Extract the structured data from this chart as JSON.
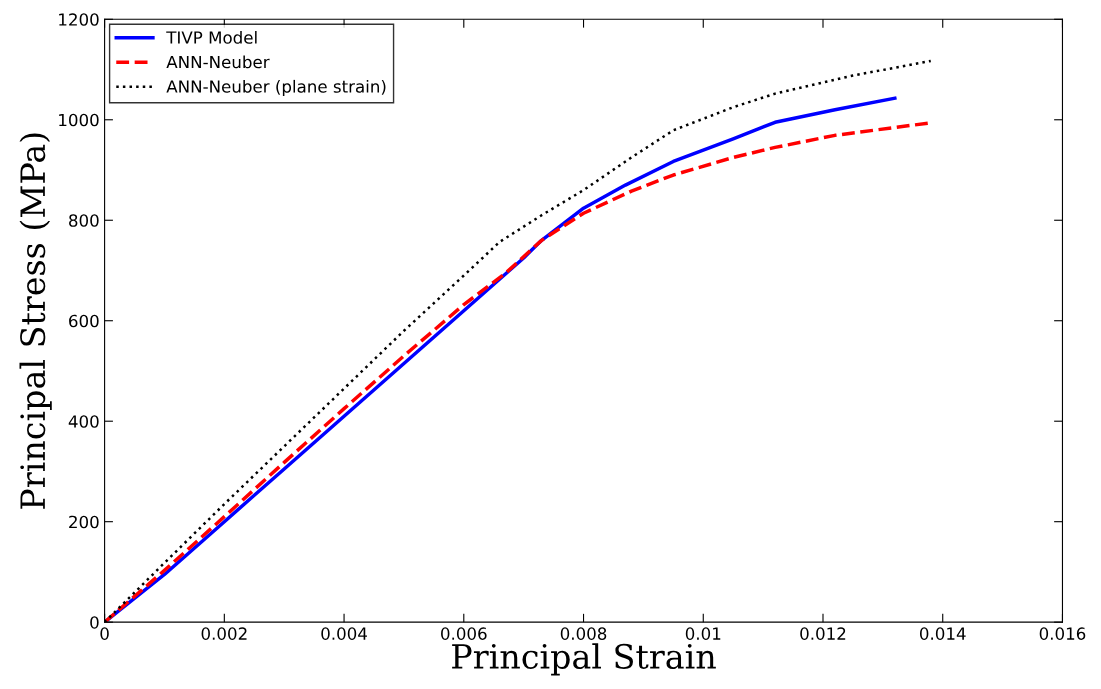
{
  "chart_data": {
    "type": "line",
    "xlabel": "Principal Strain",
    "ylabel": "Principal Stress (MPa)",
    "xlim": [
      0,
      0.016
    ],
    "xticks": [
      0,
      0.002,
      0.004,
      0.006,
      0.008,
      0.01,
      0.012,
      0.014,
      0.016
    ],
    "ylim": [
      0,
      1200
    ],
    "yticks": [
      0,
      200,
      400,
      600,
      800,
      1000,
      1200
    ],
    "grid": false,
    "legend": "top left",
    "marker": "none",
    "series": [
      {
        "name": "TIVP Model",
        "color": "#0000ff",
        "line_style": "solid",
        "x": [
          0,
          0.001,
          0.002,
          0.003,
          0.004,
          0.005,
          0.006,
          0.007,
          0.0073,
          0.008,
          0.0087,
          0.0095,
          0.0105,
          0.0112,
          0.0122,
          0.0132
        ],
        "values": [
          0,
          95,
          200,
          305,
          410,
          515,
          620,
          725,
          760,
          824,
          870,
          917,
          962,
          995,
          1020,
          1043
        ]
      },
      {
        "name": "ANN-Neuber",
        "color": "#ff0000",
        "line_style": "dashed",
        "x": [
          0,
          0.001,
          0.002,
          0.003,
          0.004,
          0.005,
          0.006,
          0.0067,
          0.0073,
          0.008,
          0.0088,
          0.0095,
          0.0105,
          0.0112,
          0.0122,
          0.0138
        ],
        "values": [
          0,
          103,
          210,
          318,
          425,
          530,
          632,
          695,
          760,
          814,
          858,
          890,
          925,
          945,
          969,
          994
        ]
      },
      {
        "name": "ANN-Neuber (plane strain)",
        "color": "#000000",
        "line_style": "dotted",
        "x": [
          0,
          0.001,
          0.002,
          0.003,
          0.004,
          0.005,
          0.006,
          0.0066,
          0.0073,
          0.008,
          0.0088,
          0.0095,
          0.0105,
          0.0112,
          0.0125,
          0.0138
        ],
        "values": [
          0,
          118,
          235,
          350,
          465,
          580,
          690,
          757,
          810,
          860,
          925,
          979,
          1025,
          1052,
          1088,
          1117
        ]
      }
    ]
  }
}
